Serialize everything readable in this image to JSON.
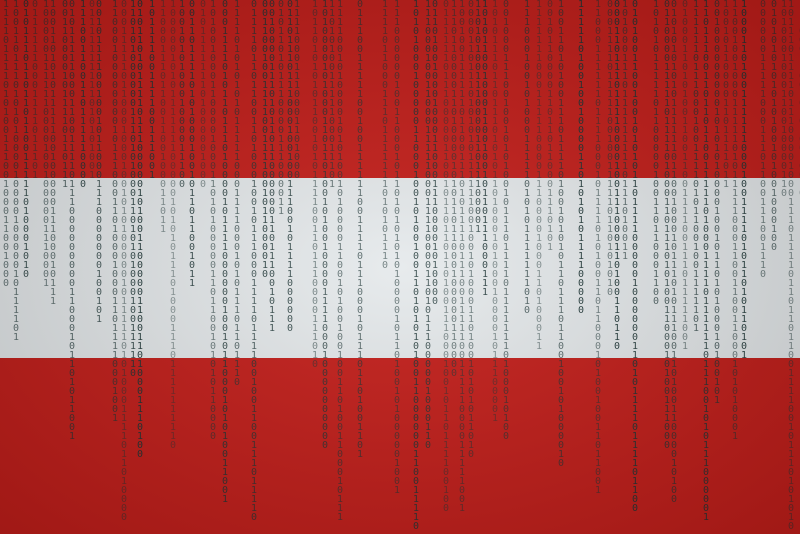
{
  "flag": {
    "colors": {
      "red": "#c41e1a",
      "white": "#e6eaec",
      "code": "#1c3434"
    },
    "glyphs": [
      "0",
      "1"
    ]
  }
}
